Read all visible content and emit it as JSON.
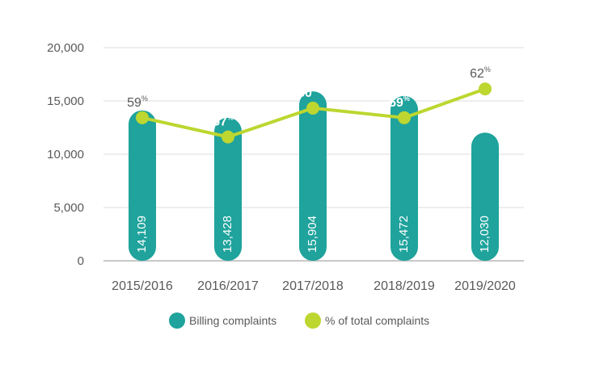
{
  "chart_data": {
    "type": "bar",
    "categories": [
      "2015/2016",
      "2016/2017",
      "2017/2018",
      "2018/2019",
      "2019/2020"
    ],
    "series": [
      {
        "name": "Billing complaints",
        "values": [
          14109,
          13428,
          15904,
          15472,
          12030
        ],
        "value_labels": [
          "14,109",
          "13,428",
          "15,904",
          "15,472",
          "12,030"
        ],
        "color": "#1fa39c"
      },
      {
        "name": "% of total complaints",
        "type": "line",
        "values": [
          59,
          57,
          60,
          59,
          62
        ],
        "label_numbers": [
          "59",
          "57",
          "60",
          "59",
          "62"
        ],
        "label_suffix": "%",
        "color": "#bdd630"
      }
    ],
    "y_axis": {
      "ylim": [
        0,
        20000
      ],
      "ticks": [
        0,
        5000,
        10000,
        15000,
        20000
      ],
      "tick_labels": [
        "0",
        "5,000",
        "10,000",
        "15,000",
        "20,000"
      ]
    },
    "grid": true,
    "legend_position": "bottom"
  }
}
